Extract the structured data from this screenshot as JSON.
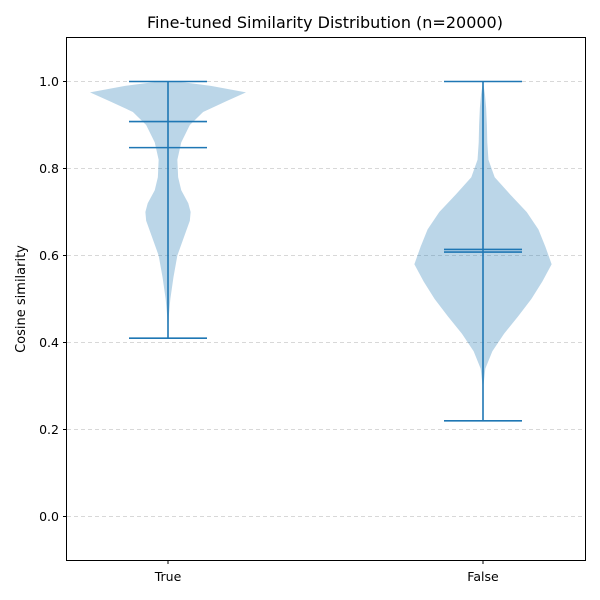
{
  "chart_data": {
    "type": "violin",
    "title": "Fine-tuned Similarity Distribution (n=20000)",
    "xlabel": "",
    "ylabel": "Cosine similarity",
    "ylim": [
      -0.1,
      1.1
    ],
    "yticks": [
      0.0,
      0.2,
      0.4,
      0.6,
      0.8,
      1.0
    ],
    "ytick_labels": [
      "0.0",
      "0.2",
      "0.4",
      "0.6",
      "0.8",
      "1.0"
    ],
    "categories": [
      "True",
      "False"
    ],
    "grid": "y, dashed",
    "color": "#1f77b4",
    "violins": [
      {
        "category": "True",
        "min": 0.41,
        "max": 1.0,
        "mean": 0.848,
        "median": 0.908,
        "density": [
          [
            0.41,
            0.0
          ],
          [
            0.46,
            0.01
          ],
          [
            0.5,
            0.03
          ],
          [
            0.55,
            0.07
          ],
          [
            0.6,
            0.12
          ],
          [
            0.65,
            0.22
          ],
          [
            0.68,
            0.28
          ],
          [
            0.7,
            0.29
          ],
          [
            0.72,
            0.26
          ],
          [
            0.75,
            0.17
          ],
          [
            0.78,
            0.13
          ],
          [
            0.82,
            0.12
          ],
          [
            0.86,
            0.17
          ],
          [
            0.9,
            0.28
          ],
          [
            0.93,
            0.45
          ],
          [
            0.955,
            0.75
          ],
          [
            0.975,
            1.0
          ],
          [
            0.99,
            0.55
          ],
          [
            1.0,
            0.12
          ]
        ]
      },
      {
        "category": "False",
        "min": 0.22,
        "max": 1.0,
        "mean": 0.614,
        "median": 0.608,
        "density": [
          [
            0.22,
            0.0
          ],
          [
            0.3,
            0.005
          ],
          [
            0.34,
            0.03
          ],
          [
            0.38,
            0.12
          ],
          [
            0.42,
            0.27
          ],
          [
            0.46,
            0.45
          ],
          [
            0.5,
            0.62
          ],
          [
            0.54,
            0.76
          ],
          [
            0.58,
            0.88
          ],
          [
            0.62,
            0.8
          ],
          [
            0.66,
            0.71
          ],
          [
            0.7,
            0.56
          ],
          [
            0.74,
            0.35
          ],
          [
            0.78,
            0.15
          ],
          [
            0.82,
            0.07
          ],
          [
            0.86,
            0.055
          ],
          [
            0.9,
            0.05
          ],
          [
            0.94,
            0.04
          ],
          [
            0.97,
            0.025
          ],
          [
            1.0,
            0.0
          ]
        ]
      }
    ]
  }
}
